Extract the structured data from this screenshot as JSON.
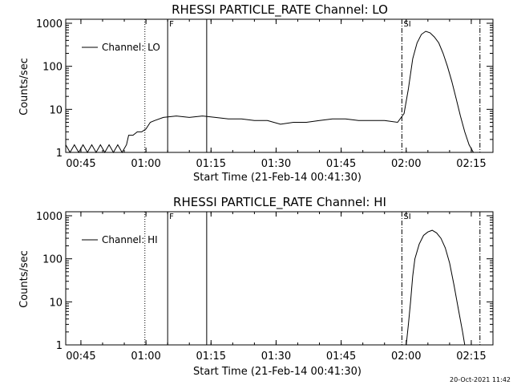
{
  "footer": {
    "timestamp": "20-Oct-2021 11:42"
  },
  "chart_data": [
    {
      "type": "line",
      "title": "RHESSI PARTICLE_RATE Channel: LO",
      "xlabel": "Start Time (21-Feb-14 00:41:30)",
      "ylabel": "Counts/sec",
      "y_scale": "log",
      "ylim": [
        1,
        1000
      ],
      "xlim": [
        "00:41:30",
        "02:20:00"
      ],
      "x_ticks": [
        "00:45",
        "01:00",
        "01:15",
        "01:30",
        "01:45",
        "02:00",
        "02:15"
      ],
      "y_ticks": [
        "1",
        "10",
        "100",
        "1000"
      ],
      "legend": {
        "position": "top-left",
        "entries": [
          "Channel: LO"
        ]
      },
      "marker_lines": [
        {
          "time": "00:59:45",
          "style": "dotted",
          "label": ""
        },
        {
          "time": "01:05:00",
          "style": "solid",
          "label": "F"
        },
        {
          "time": "01:14:00",
          "style": "solid",
          "label": ""
        },
        {
          "time": "01:59:00",
          "style": "dash-dot",
          "label": "SI"
        },
        {
          "time": "02:17:00",
          "style": "dash-dot",
          "label": ""
        }
      ],
      "series": [
        {
          "name": "Channel: LO",
          "x": [
            "00:41:30",
            "00:42:30",
            "00:43:30",
            "00:44:30",
            "00:45:30",
            "00:46:30",
            "00:47:30",
            "00:48:30",
            "00:49:30",
            "00:50:30",
            "00:51:30",
            "00:52:30",
            "00:53:30",
            "00:54:30",
            "00:55:30",
            "00:56:00",
            "00:57:00",
            "00:58:00",
            "00:59:00",
            "01:00:00",
            "01:01:00",
            "01:02:00",
            "01:04:00",
            "01:07:00",
            "01:10:00",
            "01:13:00",
            "01:16:00",
            "01:19:00",
            "01:22:00",
            "01:25:00",
            "01:28:00",
            "01:31:00",
            "01:34:00",
            "01:37:00",
            "01:40:00",
            "01:43:00",
            "01:46:00",
            "01:49:00",
            "01:52:00",
            "01:55:00",
            "01:58:00",
            "01:59:30",
            "02:00:30",
            "02:01:30",
            "02:02:30",
            "02:03:30",
            "02:04:30",
            "02:05:30",
            "02:06:30",
            "02:07:30",
            "02:08:30",
            "02:09:30",
            "02:10:30",
            "02:11:30",
            "02:12:30",
            "02:13:30",
            "02:14:30",
            "02:15:30"
          ],
          "y": [
            1.5,
            1,
            1.5,
            1,
            1.5,
            1,
            1.5,
            1,
            1.5,
            1,
            1.5,
            1,
            1.5,
            1,
            1.5,
            2.5,
            2.5,
            3,
            3,
            3.5,
            5,
            5.5,
            6.5,
            7,
            6.5,
            7,
            6.5,
            6,
            6,
            5.5,
            5.5,
            4.5,
            5,
            5,
            5.5,
            6,
            6,
            5.5,
            5.5,
            5.5,
            5,
            8,
            30,
            150,
            350,
            550,
            650,
            600,
            480,
            350,
            200,
            100,
            45,
            18,
            7,
            3,
            1.5,
            1
          ]
        }
      ]
    },
    {
      "type": "line",
      "title": "RHESSI PARTICLE_RATE Channel: HI",
      "xlabel": "Start Time (21-Feb-14 00:41:30)",
      "ylabel": "Counts/sec",
      "y_scale": "log",
      "ylim": [
        1,
        1000
      ],
      "xlim": [
        "00:41:30",
        "02:20:00"
      ],
      "x_ticks": [
        "00:45",
        "01:00",
        "01:15",
        "01:30",
        "01:45",
        "02:00",
        "02:15"
      ],
      "y_ticks": [
        "1",
        "10",
        "100",
        "1000"
      ],
      "legend": {
        "position": "top-left",
        "entries": [
          "Channel: HI"
        ]
      },
      "marker_lines": [
        {
          "time": "00:59:45",
          "style": "dotted",
          "label": ""
        },
        {
          "time": "01:05:00",
          "style": "solid",
          "label": "F"
        },
        {
          "time": "01:14:00",
          "style": "solid",
          "label": ""
        },
        {
          "time": "01:59:00",
          "style": "dash-dot",
          "label": "SI"
        },
        {
          "time": "02:17:00",
          "style": "dash-dot",
          "label": ""
        }
      ],
      "series": [
        {
          "name": "Channel: HI",
          "x": [
            "02:00:00",
            "02:00:30",
            "02:01:00",
            "02:01:30",
            "02:02:00",
            "02:03:00",
            "02:04:00",
            "02:05:00",
            "02:06:00",
            "02:07:00",
            "02:08:00",
            "02:09:00",
            "02:10:00",
            "02:11:00",
            "02:12:00",
            "02:13:00",
            "02:13:30"
          ],
          "y": [
            1,
            3,
            10,
            40,
            100,
            220,
            350,
            420,
            460,
            400,
            300,
            180,
            80,
            25,
            7,
            2,
            1
          ]
        }
      ]
    }
  ]
}
